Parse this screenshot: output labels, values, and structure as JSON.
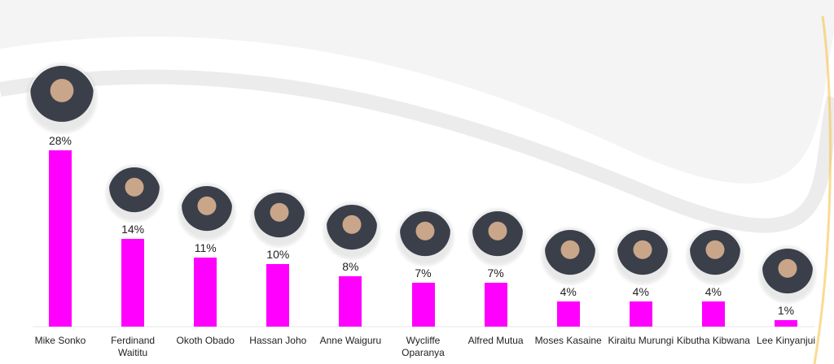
{
  "chart_data": {
    "type": "bar",
    "categories": [
      "Mike Sonko",
      "Ferdinand\nWaititu",
      "Okoth Obado",
      "Hassan Joho",
      "Anne Waiguru",
      "Wycliffe\nOparanya",
      "Alfred Mutua",
      "Moses Kasaine",
      "Kiraitu Murungi",
      "Kibutha Kibwana",
      "Lee Kinyanjui"
    ],
    "values": [
      28,
      14,
      11,
      10,
      8,
      7,
      7,
      4,
      4,
      4,
      1
    ],
    "value_labels": [
      "28%",
      "14%",
      "11%",
      "10%",
      "8%",
      "7%",
      "7%",
      "4%",
      "4%",
      "4%",
      "1%"
    ],
    "color": "#ff00ff"
  }
}
